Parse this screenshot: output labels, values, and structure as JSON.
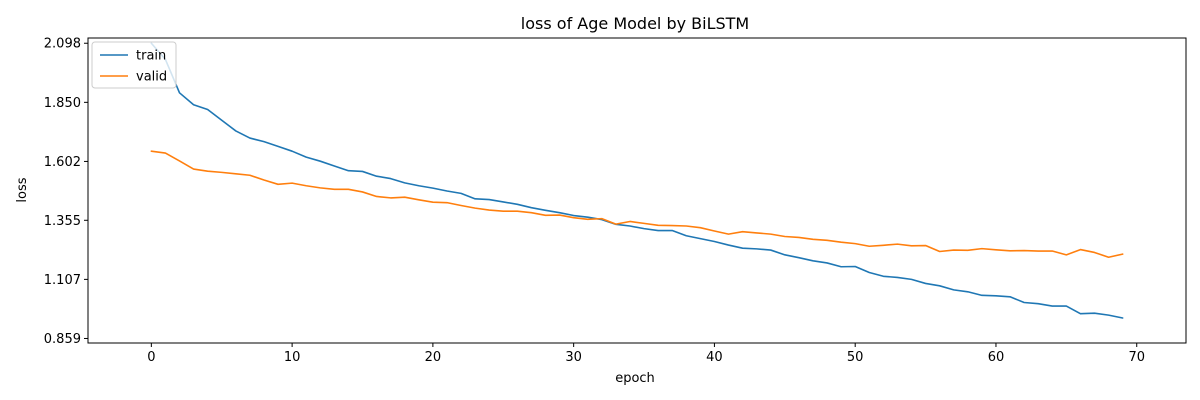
{
  "chart_data": {
    "type": "line",
    "title": "loss of Age Model by BiLSTM",
    "xlabel": "epoch",
    "ylabel": "loss",
    "xlim": [
      -4.5,
      73.5
    ],
    "ylim": [
      0.84,
      2.12
    ],
    "xticks": [
      0,
      10,
      20,
      30,
      40,
      50,
      60,
      70
    ],
    "xtick_labels": [
      "0",
      "10",
      "20",
      "30",
      "40",
      "50",
      "60",
      "70"
    ],
    "yticks": [
      0.859,
      1.107,
      1.355,
      1.602,
      1.85,
      2.098
    ],
    "ytick_labels": [
      "0.859",
      "1.107",
      "1.355",
      "1.602",
      "1.850",
      "2.098"
    ],
    "grid": false,
    "legend_position": "top-left",
    "x": [
      0,
      1,
      2,
      3,
      4,
      5,
      6,
      7,
      8,
      9,
      10,
      11,
      12,
      13,
      14,
      15,
      16,
      17,
      18,
      19,
      20,
      21,
      22,
      23,
      24,
      25,
      26,
      27,
      28,
      29,
      30,
      31,
      32,
      33,
      34,
      35,
      36,
      37,
      38,
      39,
      40,
      41,
      42,
      43,
      44,
      45,
      46,
      47,
      48,
      49,
      50,
      51,
      52,
      53,
      54,
      55,
      56,
      57,
      58,
      59,
      60,
      61,
      62,
      63,
      64,
      65,
      66,
      67,
      68,
      69
    ],
    "series": [
      {
        "name": "train",
        "color": "#1f77b4",
        "values": [
          2.098,
          2.03,
          1.89,
          1.84,
          1.82,
          1.775,
          1.73,
          1.7,
          1.685,
          1.665,
          1.645,
          1.62,
          1.603,
          1.583,
          1.563,
          1.56,
          1.54,
          1.53,
          1.512,
          1.5,
          1.49,
          1.478,
          1.468,
          1.445,
          1.442,
          1.432,
          1.422,
          1.408,
          1.397,
          1.387,
          1.375,
          1.368,
          1.358,
          1.338,
          1.331,
          1.32,
          1.312,
          1.312,
          1.29,
          1.278,
          1.266,
          1.251,
          1.238,
          1.235,
          1.23,
          1.21,
          1.198,
          1.185,
          1.176,
          1.16,
          1.161,
          1.136,
          1.12,
          1.115,
          1.107,
          1.09,
          1.08,
          1.063,
          1.055,
          1.04,
          1.038,
          1.034,
          1.01,
          1.005,
          0.995,
          0.995,
          0.963,
          0.965,
          0.957,
          0.945
        ]
      },
      {
        "name": "valid",
        "color": "#ff7f0e",
        "values": [
          1.645,
          1.637,
          1.604,
          1.57,
          1.561,
          1.556,
          1.55,
          1.544,
          1.524,
          1.506,
          1.511,
          1.5,
          1.491,
          1.485,
          1.485,
          1.474,
          1.455,
          1.449,
          1.452,
          1.441,
          1.431,
          1.429,
          1.417,
          1.406,
          1.398,
          1.393,
          1.393,
          1.387,
          1.376,
          1.377,
          1.366,
          1.359,
          1.362,
          1.339,
          1.35,
          1.342,
          1.334,
          1.333,
          1.331,
          1.324,
          1.31,
          1.297,
          1.307,
          1.302,
          1.297,
          1.287,
          1.283,
          1.275,
          1.271,
          1.263,
          1.257,
          1.246,
          1.25,
          1.255,
          1.248,
          1.249,
          1.224,
          1.23,
          1.229,
          1.236,
          1.231,
          1.227,
          1.228,
          1.226,
          1.226,
          1.21,
          1.232,
          1.22,
          1.2,
          1.213
        ]
      }
    ]
  }
}
